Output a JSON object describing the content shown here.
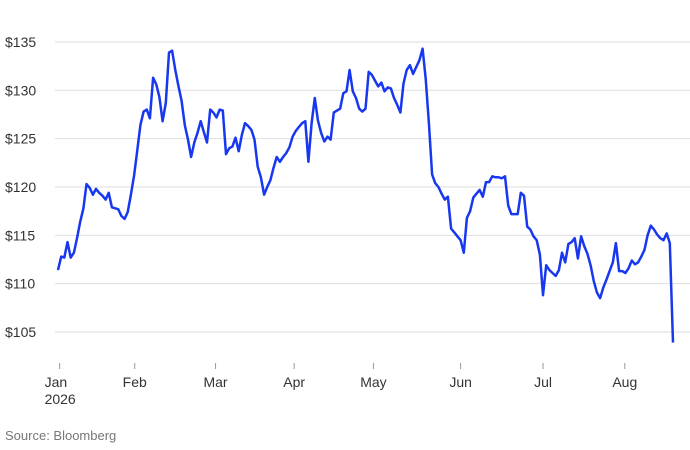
{
  "chart_data": {
    "type": "line",
    "values": [
      111.4,
      112.8,
      112.7,
      114.3,
      112.7,
      113.2,
      114.7,
      116.4,
      117.8,
      120.3,
      119.9,
      119.2,
      119.8,
      119.4,
      119.1,
      118.7,
      119.4,
      117.9,
      117.8,
      117.7,
      117.0,
      116.7,
      117.4,
      119.2,
      121.2,
      123.8,
      126.4,
      127.8,
      128.0,
      127.1,
      131.3,
      130.6,
      129.3,
      126.8,
      128.7,
      133.9,
      134.1,
      132.1,
      130.4,
      128.9,
      126.4,
      124.9,
      123.1,
      124.6,
      125.6,
      126.8,
      125.7,
      124.6,
      128.0,
      127.7,
      127.2,
      128.0,
      127.9,
      123.4,
      124.0,
      124.2,
      125.1,
      123.7,
      125.4,
      126.6,
      126.3,
      125.9,
      124.9,
      122.1,
      121.0,
      119.2,
      120.0,
      120.7,
      122.0,
      123.1,
      122.6,
      123.1,
      123.5,
      124.1,
      125.2,
      125.8,
      126.2,
      126.6,
      126.8,
      122.6,
      126.6,
      129.2,
      126.9,
      125.6,
      124.7,
      125.2,
      124.9,
      127.7,
      127.9,
      128.1,
      129.7,
      129.9,
      132.1,
      129.9,
      129.2,
      128.1,
      127.8,
      128.1,
      131.9,
      131.6,
      131.0,
      130.4,
      130.8,
      129.9,
      130.3,
      130.2,
      129.2,
      128.5,
      127.7,
      130.7,
      132.1,
      132.6,
      131.7,
      132.4,
      133.1,
      134.3,
      131.2,
      126.6,
      121.3,
      120.4,
      120.0,
      119.3,
      118.7,
      119.0,
      115.7,
      115.3,
      114.9,
      114.5,
      113.2,
      116.8,
      117.5,
      118.9,
      119.3,
      119.7,
      119.0,
      120.5,
      120.5,
      121.1,
      121.0,
      121.0,
      120.9,
      121.1,
      118.1,
      117.2,
      117.2,
      117.2,
      119.4,
      119.1,
      115.9,
      115.6,
      114.9,
      114.5,
      113.0,
      108.8,
      111.9,
      111.4,
      111.1,
      110.8,
      111.4,
      113.2,
      112.2,
      114.1,
      114.3,
      114.7,
      112.6,
      114.9,
      113.9,
      113.1,
      111.9,
      110.3,
      109.1,
      108.5,
      109.6,
      110.4,
      111.3,
      112.2,
      114.2,
      111.3,
      111.3,
      111.1,
      111.6,
      112.4,
      112.0,
      112.2,
      112.8,
      113.5,
      115.0,
      116.0,
      115.6,
      115.1,
      114.7,
      114.5,
      115.2,
      114.2,
      103.9
    ],
    "color": "#1838f0",
    "xticks": [
      {
        "value": 0.5,
        "label": "Jan\n2026"
      },
      {
        "value": 24.2,
        "label": "Feb"
      },
      {
        "value": 49.7,
        "label": "Mar"
      },
      {
        "value": 74.5,
        "label": "Apr"
      },
      {
        "value": 99.5,
        "label": "May"
      },
      {
        "value": 127,
        "label": "Jun"
      },
      {
        "value": 153,
        "label": "Jul"
      },
      {
        "value": 178.8,
        "label": "Aug"
      }
    ],
    "ylim": [
      102,
      136
    ],
    "yticks": [
      {
        "value": 105,
        "label": "$105"
      },
      {
        "value": 110,
        "label": "$110"
      },
      {
        "value": 115,
        "label": "$115"
      },
      {
        "value": 120,
        "label": "$120"
      },
      {
        "value": 125,
        "label": "$125"
      },
      {
        "value": 130,
        "label": "$130"
      },
      {
        "value": 135,
        "label": "$135"
      }
    ],
    "grid": true,
    "source": "Source: Bloomberg"
  }
}
